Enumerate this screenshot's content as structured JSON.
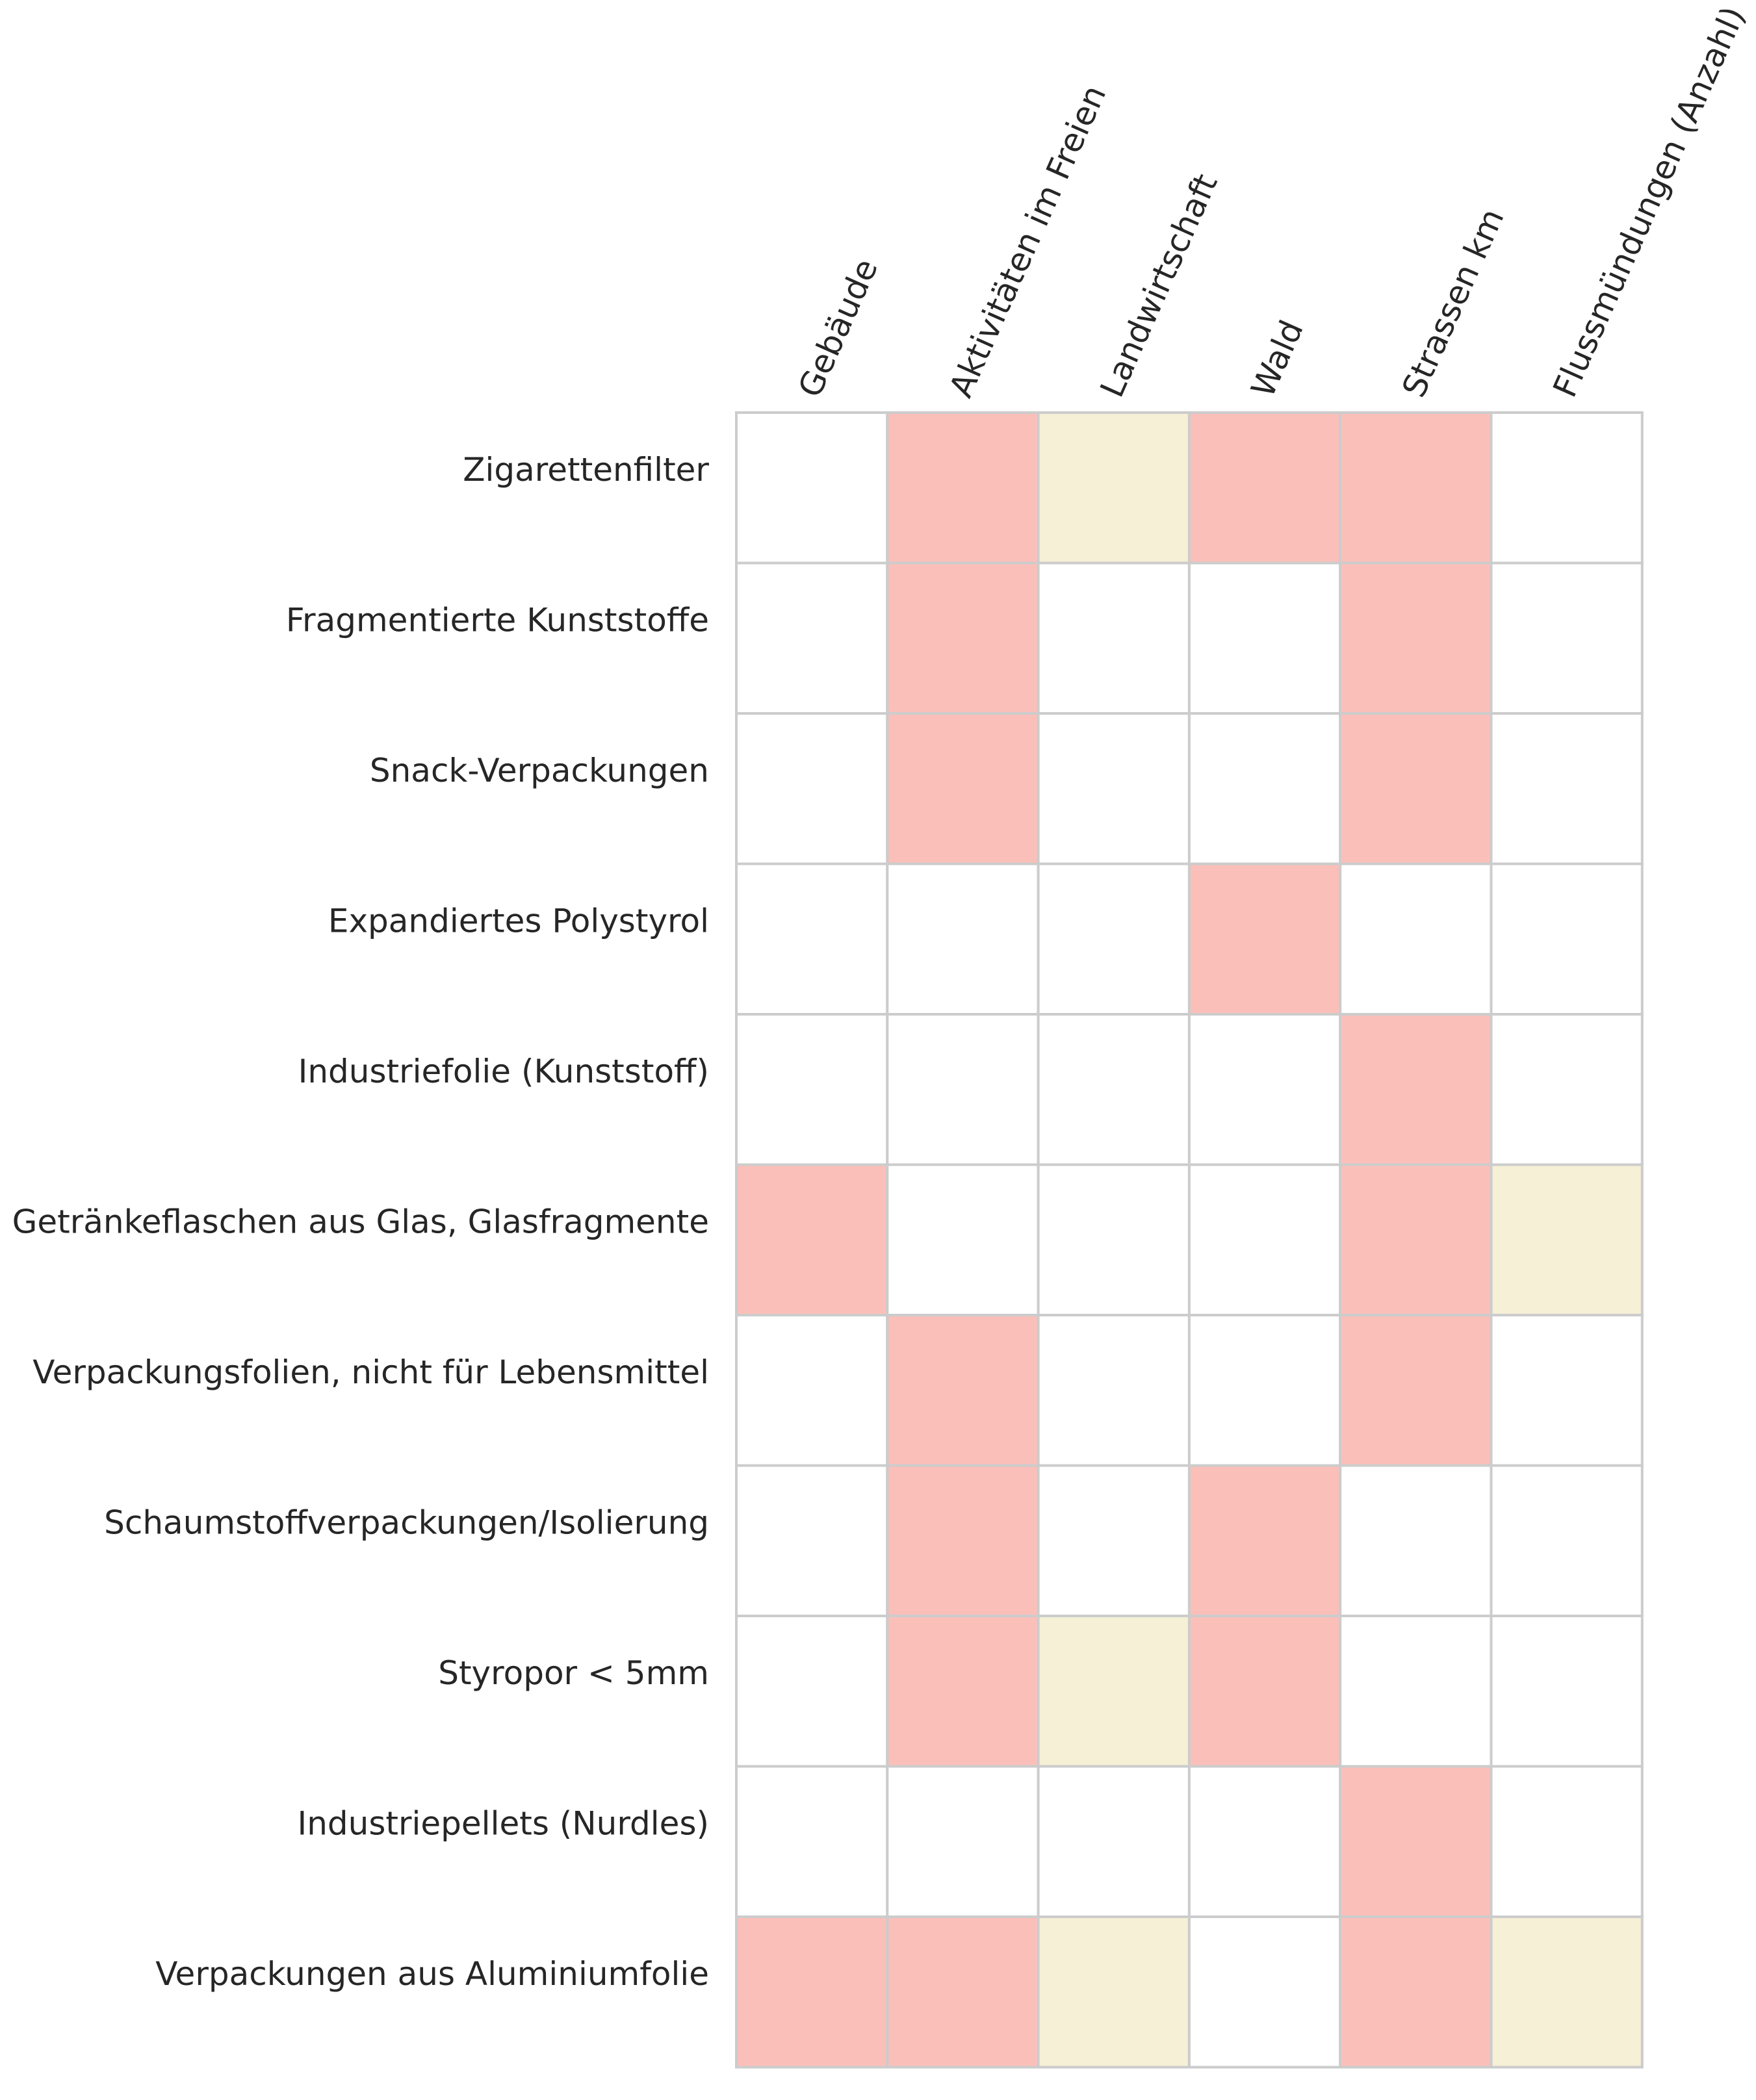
{
  "chart_data": {
    "type": "heatmap",
    "columns": [
      "Gebäude",
      "Aktivitäten im Freien",
      "Landwirtschaft",
      "Wald",
      "Strassen km",
      "Flussmündungen (Anzahl)"
    ],
    "rows": [
      "Zigarettenfilter",
      "Fragmentierte Kunststoffe",
      "Snack-Verpackungen",
      "Expandiertes Polystyrol",
      "Industriefolie (Kunststoff)",
      "Getränkeflaschen aus Glas, Glasfragmente",
      "Verpackungsfolien, nicht für Lebensmittel",
      "Schaumstoffverpackungen/Isolierung",
      "Styropor < 5mm",
      "Industriepellets (Nurdles)",
      "Verpackungen aus Aluminiumfolie"
    ],
    "values": [
      [
        0,
        1,
        2,
        1,
        1,
        0
      ],
      [
        0,
        1,
        0,
        0,
        1,
        0
      ],
      [
        0,
        1,
        0,
        0,
        1,
        0
      ],
      [
        0,
        0,
        0,
        1,
        0,
        0
      ],
      [
        0,
        0,
        0,
        0,
        1,
        0
      ],
      [
        1,
        0,
        0,
        0,
        1,
        2
      ],
      [
        0,
        1,
        0,
        0,
        1,
        0
      ],
      [
        0,
        1,
        0,
        1,
        0,
        0
      ],
      [
        0,
        1,
        2,
        1,
        0,
        0
      ],
      [
        0,
        0,
        0,
        0,
        1,
        0
      ],
      [
        1,
        1,
        2,
        0,
        1,
        2
      ]
    ],
    "value_key": {
      "0": "#ffffff",
      "1": "#fbbfb9",
      "2": "#f5f0d6"
    },
    "grid_color": "#cccccc",
    "title": "",
    "xlabel": "",
    "ylabel": ""
  }
}
